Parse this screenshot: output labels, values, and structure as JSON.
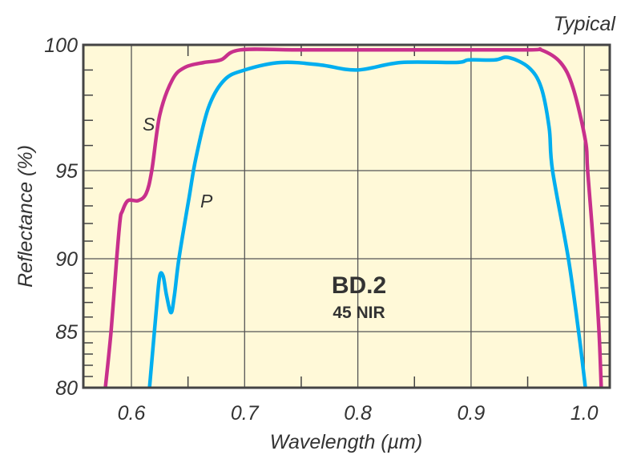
{
  "header": {
    "note": "Typical"
  },
  "annotation": {
    "title": "BD.2",
    "subtitle": "45 NIR"
  },
  "colors": {
    "plot_bg": "#FFF9D8",
    "frame": "#444444",
    "grid": "#555555",
    "S": "#C8308C",
    "P": "#00AEEF"
  },
  "chart_data": {
    "type": "line",
    "title": "BD.2",
    "subtitle": "45 NIR",
    "note": "Typical",
    "xlabel": "Wavelength (µm)",
    "ylabel": "Reflectance (%)",
    "xlim": [
      0.5575,
      1.0225
    ],
    "ylim": [
      80,
      100
    ],
    "y_scale": "non-linear (expanded toward 100%)",
    "x_ticks": [
      0.6,
      0.7,
      0.8,
      0.9,
      1.0
    ],
    "x_tick_labels": [
      "0.6",
      "0.7",
      "0.8",
      "0.9",
      "1.0"
    ],
    "y_ticks": [
      80,
      85,
      90,
      95,
      100
    ],
    "y_tick_labels": [
      "80",
      "85",
      "90",
      "95",
      "100"
    ],
    "grid": true,
    "legend": "inline labels",
    "series": [
      {
        "name": "S",
        "color": "#C8308C",
        "x": [
          0.577,
          0.582,
          0.587,
          0.59,
          0.592,
          0.597,
          0.606,
          0.613,
          0.618,
          0.625,
          0.636,
          0.647,
          0.664,
          0.679,
          0.696,
          0.75,
          0.85,
          0.95,
          0.962,
          0.979,
          0.99,
          1.001,
          1.003,
          1.009,
          1.013,
          1.015
        ],
        "values": [
          80,
          85,
          90,
          92.2,
          92.7,
          93.3,
          93.3,
          93.7,
          95,
          97.2,
          98.6,
          99.1,
          99.3,
          99.4,
          99.8,
          99.8,
          99.8,
          99.8,
          99.8,
          99.3,
          98.3,
          96.2,
          95,
          90,
          85,
          80
        ]
      },
      {
        "name": "P",
        "color": "#00AEEF",
        "x": [
          0.616,
          0.622,
          0.625,
          0.628,
          0.631,
          0.635,
          0.638,
          0.642,
          0.651,
          0.657,
          0.668,
          0.682,
          0.7,
          0.732,
          0.767,
          0.799,
          0.838,
          0.887,
          0.898,
          0.921,
          0.933,
          0.951,
          0.962,
          0.969,
          0.972,
          0.986,
          0.995,
          1.001
        ],
        "values": [
          80,
          86.5,
          88.8,
          88.8,
          87.5,
          86.3,
          87.5,
          90,
          93.5,
          95.5,
          97.5,
          98.6,
          99.0,
          99.3,
          99.2,
          99.0,
          99.3,
          99.3,
          99.4,
          99.4,
          99.5,
          99.1,
          98.3,
          96.7,
          95,
          90,
          85,
          80
        ]
      }
    ]
  }
}
